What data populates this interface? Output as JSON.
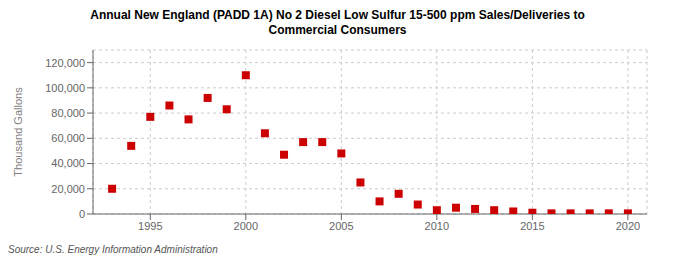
{
  "chart_data": {
    "type": "scatter",
    "title": "Annual New England (PADD 1A) No 2 Diesel Low Sulfur 15-500 ppm Sales/Deliveries to\nCommercial Consumers",
    "ylabel": "Thousand Gallons",
    "annotations": [
      "Source: U.S. Energy Information Administration"
    ],
    "x": [
      1993,
      1994,
      1995,
      1996,
      1997,
      1998,
      1999,
      2000,
      2001,
      2002,
      2003,
      2004,
      2005,
      2006,
      2007,
      2008,
      2009,
      2010,
      2011,
      2012,
      2013,
      2014,
      2015,
      2016,
      2017,
      2018,
      2019,
      2020
    ],
    "values": [
      20000,
      54000,
      77000,
      86000,
      75000,
      92000,
      83000,
      110000,
      64000,
      47000,
      57000,
      57000,
      48000,
      25000,
      10000,
      16000,
      7500,
      3000,
      5000,
      4000,
      3000,
      2000,
      1000,
      500,
      500,
      500,
      500,
      500
    ],
    "color": "#cc0000",
    "marker": "square",
    "xlim": [
      1992,
      2021
    ],
    "ylim": [
      0,
      130000
    ],
    "xticks": [
      1995,
      2000,
      2005,
      2010,
      2015,
      2020
    ],
    "yticks": [
      0,
      {
        "value": 20000,
        "label": "20,000"
      },
      {
        "value": 40000,
        "label": "40,000"
      },
      {
        "value": 60000,
        "label": "60,000"
      },
      {
        "value": 80000,
        "label": "80,000"
      },
      {
        "value": 100000,
        "label": "100,000"
      },
      {
        "value": 120000,
        "label": "120,000"
      }
    ],
    "grid": true
  }
}
